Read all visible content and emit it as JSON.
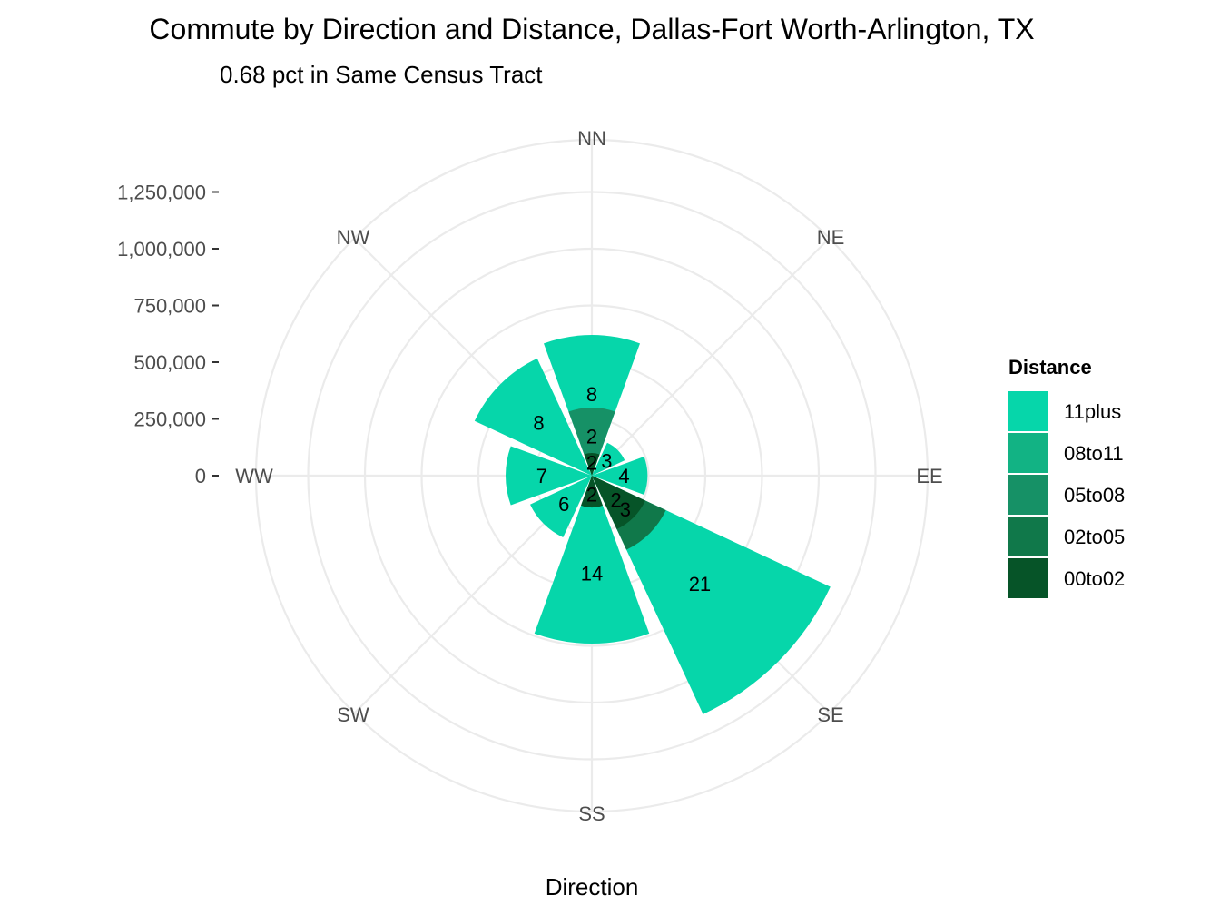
{
  "chart_data": {
    "type": "polar-bar",
    "title": "Commute by Direction and Distance, Dallas-Fort Worth-Arlington, TX",
    "subtitle": "0.68 pct in Same Census Tract",
    "xlabel": "Direction",
    "directions": [
      "NN",
      "NE",
      "EE",
      "SE",
      "SS",
      "SW",
      "WW",
      "NW"
    ],
    "r_ticks": [
      0,
      250000,
      500000,
      750000,
      1000000,
      1250000
    ],
    "r_tick_labels": [
      "0",
      "250,000",
      "500,000",
      "750,000",
      "1,000,000",
      "1,250,000"
    ],
    "r_max": 1480000,
    "legend": {
      "title": "Distance",
      "entries": [
        {
          "name": "11plus",
          "color": "#06d6aa"
        },
        {
          "name": "08to11",
          "color": "#12b384"
        },
        {
          "name": "05to08",
          "color": "#169166"
        },
        {
          "name": "02to05",
          "color": "#10784a"
        },
        {
          "name": "00to02",
          "color": "#065428"
        }
      ]
    },
    "bars": [
      {
        "direction": "SE",
        "category": "11plus",
        "value": 1160000,
        "label": "21"
      },
      {
        "direction": "SE",
        "category": "02to05",
        "value": 360000,
        "label": "3"
      },
      {
        "direction": "SE",
        "category": "00to02",
        "value": 260000,
        "label": "2"
      },
      {
        "direction": "SS",
        "category": "11plus",
        "value": 740000,
        "label": "14"
      },
      {
        "direction": "SS",
        "category": "00to02",
        "value": 140000,
        "label": "2"
      },
      {
        "direction": "NN",
        "category": "11plus",
        "value": 620000,
        "label": "8"
      },
      {
        "direction": "NN",
        "category": "05to08",
        "value": 300000,
        "label": "2"
      },
      {
        "direction": "NN",
        "category": "00to02",
        "value": 100000,
        "label": "2"
      },
      {
        "direction": "NW",
        "category": "11plus",
        "value": 570000,
        "label": "8"
      },
      {
        "direction": "WW",
        "category": "11plus",
        "value": 380000,
        "label": "7"
      },
      {
        "direction": "SW",
        "category": "11plus",
        "value": 300000,
        "label": "6"
      },
      {
        "direction": "EE",
        "category": "11plus",
        "value": 245000,
        "label": "4"
      },
      {
        "direction": "NE",
        "category": "11plus",
        "value": 160000,
        "label": "3"
      }
    ]
  }
}
